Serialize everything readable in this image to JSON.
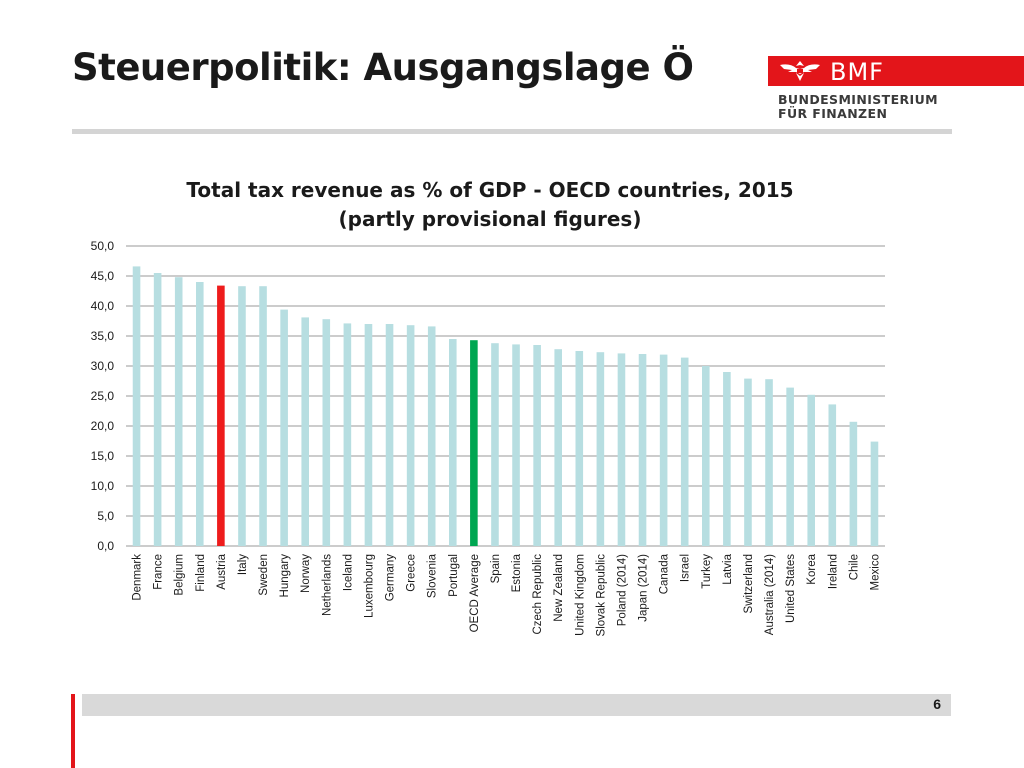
{
  "slide": {
    "title": "Steuerpolitik: Ausgangslage Ö",
    "page_number": "6"
  },
  "logo": {
    "abbr": "BMF",
    "line1": "BUNDESMINISTERIUM",
    "line2": "FÜR FINANZEN",
    "color": "#e3151a"
  },
  "chart_data": {
    "type": "bar",
    "title": "Total tax revenue as % of GDP - OECD countries, 2015",
    "subtitle": "(partly provisional figures)",
    "xlabel": "",
    "ylabel": "",
    "ylim": [
      0,
      50
    ],
    "yticks": [
      "0,0",
      "5,0",
      "10,0",
      "15,0",
      "20,0",
      "25,0",
      "30,0",
      "35,0",
      "40,0",
      "45,0",
      "50,0"
    ],
    "grid": true,
    "legend": "none",
    "colors": {
      "default": "#b7dee1",
      "Austria": "#ee1c1c",
      "OECD Average": "#00a651"
    },
    "categories": [
      "Denmark",
      "France",
      "Belgium",
      "Finland",
      "Austria",
      "Italy",
      "Sweden",
      "Hungary",
      "Norway",
      "Netherlands",
      "Iceland",
      "Luxembourg",
      "Germany",
      "Greece",
      "Slovenia",
      "Portugal",
      "OECD Average",
      "Spain",
      "Estonia",
      "Czech Republic",
      "New Zealand",
      "United Kingdom",
      "Slovak Republic",
      "Poland (2014)",
      "Japan (2014)",
      "Canada",
      "Israel",
      "Turkey",
      "Latvia",
      "Switzerland",
      "Australia (2014)",
      "United States",
      "Korea",
      "Ireland",
      "Chile",
      "Mexico"
    ],
    "values": [
      46.6,
      45.5,
      44.8,
      44.0,
      43.4,
      43.3,
      43.3,
      39.4,
      38.1,
      37.8,
      37.1,
      37.0,
      37.0,
      36.8,
      36.6,
      34.5,
      34.3,
      33.8,
      33.6,
      33.5,
      32.8,
      32.5,
      32.3,
      32.1,
      32.0,
      31.9,
      31.4,
      30.0,
      29.0,
      27.9,
      27.8,
      26.4,
      25.2,
      23.6,
      20.7,
      17.4
    ]
  }
}
